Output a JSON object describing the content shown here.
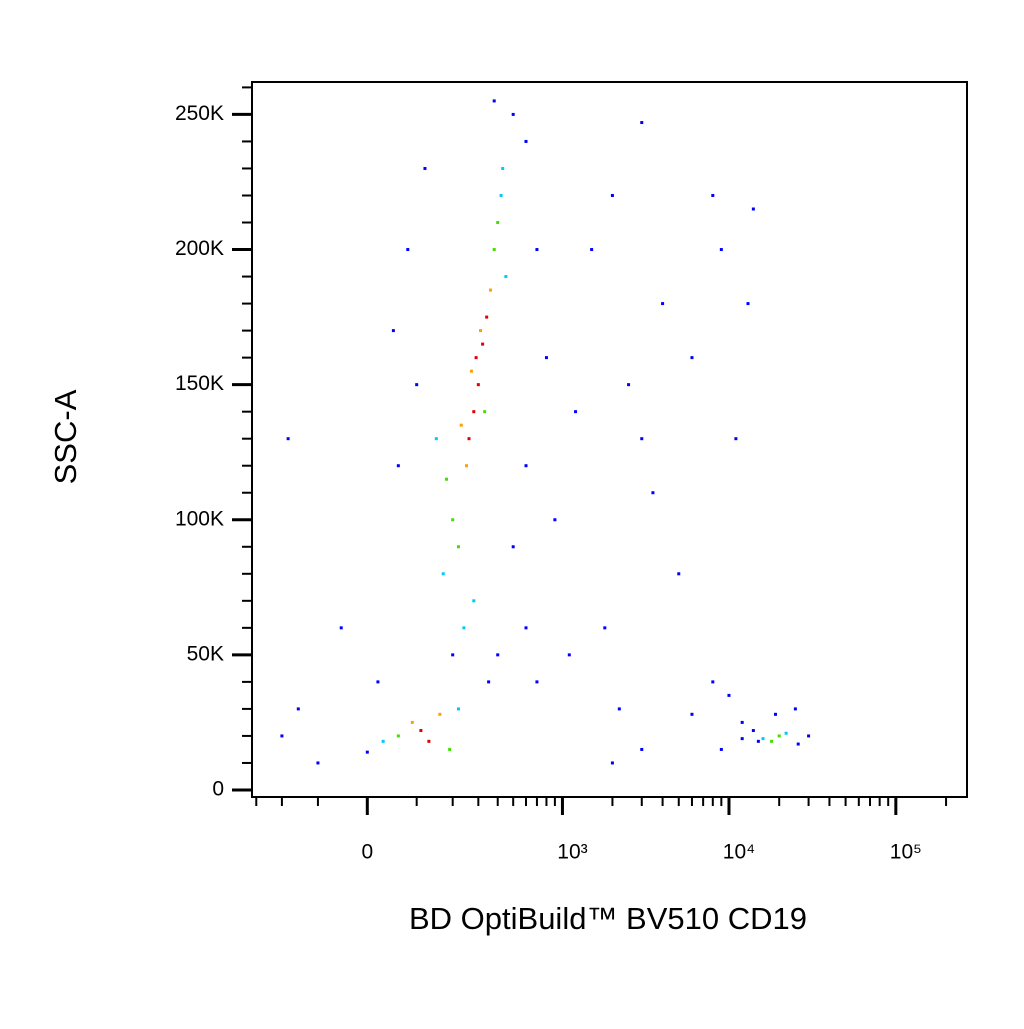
{
  "chart_data": {
    "type": "scatter",
    "x_label": "BD OptiBuild™ BV510 CD19",
    "y_label": "SSC-A",
    "x_scale": "asinh",
    "x_asinh_width": 136,
    "xlim": [
      -320,
      267000
    ],
    "xticks": [
      0,
      {
        "value": 1000,
        "label": "10³"
      },
      {
        "value": 10000,
        "label": "10⁴"
      },
      {
        "value": 100000,
        "label": "10⁵"
      }
    ],
    "xminorticks": [
      -300,
      -200,
      -100,
      100,
      200,
      300,
      400,
      500,
      600,
      700,
      800,
      900,
      2000,
      3000,
      4000,
      5000,
      6000,
      7000,
      8000,
      9000,
      20000,
      30000,
      40000,
      50000,
      60000,
      70000,
      80000,
      90000,
      200000
    ],
    "ylim": [
      -2600,
      262000
    ],
    "yticks": [
      0,
      {
        "value": 50000,
        "label": "50K"
      },
      {
        "value": 100000,
        "label": "100K"
      },
      {
        "value": 150000,
        "label": "150K"
      },
      {
        "value": 200000,
        "label": "200K"
      },
      {
        "value": 250000,
        "label": "250K"
      }
    ],
    "yminorticks": [
      10000,
      20000,
      30000,
      40000,
      60000,
      70000,
      80000,
      90000,
      110000,
      120000,
      130000,
      140000,
      160000,
      170000,
      180000,
      190000,
      210000,
      220000,
      230000,
      240000,
      260000
    ],
    "series": [
      {
        "color": "#0000ff",
        "x": [
          -150,
          -200,
          -100,
          0,
          20,
          60,
          50,
          -180,
          80,
          120,
          380,
          500,
          600,
          700,
          800,
          900,
          1200,
          1500,
          2000,
          2500,
          3000,
          4000,
          5000,
          6000,
          8000,
          9000,
          11000,
          13000,
          14000,
          3500,
          1800,
          2200,
          3000,
          6000,
          8000,
          10000,
          12000,
          25000,
          30000,
          9000,
          600,
          700,
          500,
          400,
          350,
          200,
          -50,
          100,
          600,
          1100,
          2000,
          3000,
          15000,
          12000,
          14000,
          26000,
          19000
        ],
        "values": [
          30000,
          20000,
          10000,
          14000,
          40000,
          120000,
          170000,
          130000,
          200000,
          230000,
          255000,
          250000,
          240000,
          200000,
          160000,
          100000,
          140000,
          200000,
          220000,
          150000,
          130000,
          180000,
          80000,
          160000,
          220000,
          200000,
          130000,
          180000,
          215000,
          110000,
          60000,
          30000,
          15000,
          28000,
          40000,
          35000,
          25000,
          30000,
          20000,
          15000,
          60000,
          40000,
          90000,
          50000,
          40000,
          50000,
          60000,
          150000,
          120000,
          50000,
          10000,
          247000,
          18000,
          19000,
          22000,
          17000,
          28000
        ]
      },
      {
        "color": "#00c8ff",
        "x": [
          30,
          220,
          170,
          420,
          430,
          240,
          150,
          450,
          16000,
          22000,
          280
        ],
        "values": [
          18000,
          30000,
          80000,
          220000,
          230000,
          60000,
          130000,
          190000,
          19000,
          21000,
          70000
        ]
      },
      {
        "color": "#40e000",
        "x": [
          60,
          190,
          200,
          380,
          400,
          220,
          180,
          330,
          20000,
          18000
        ],
        "values": [
          20000,
          15000,
          100000,
          200000,
          210000,
          90000,
          115000,
          140000,
          20000,
          18000
        ]
      },
      {
        "color": "#ffa000",
        "x": [
          90,
          160,
          250,
          360,
          310,
          230,
          270
        ],
        "values": [
          25000,
          28000,
          120000,
          185000,
          170000,
          135000,
          155000
        ]
      },
      {
        "color": "#e00000",
        "x": [
          110,
          130,
          300,
          280,
          320,
          260,
          340,
          290
        ],
        "values": [
          22000,
          18000,
          150000,
          140000,
          165000,
          130000,
          175000,
          160000
        ]
      }
    ]
  }
}
